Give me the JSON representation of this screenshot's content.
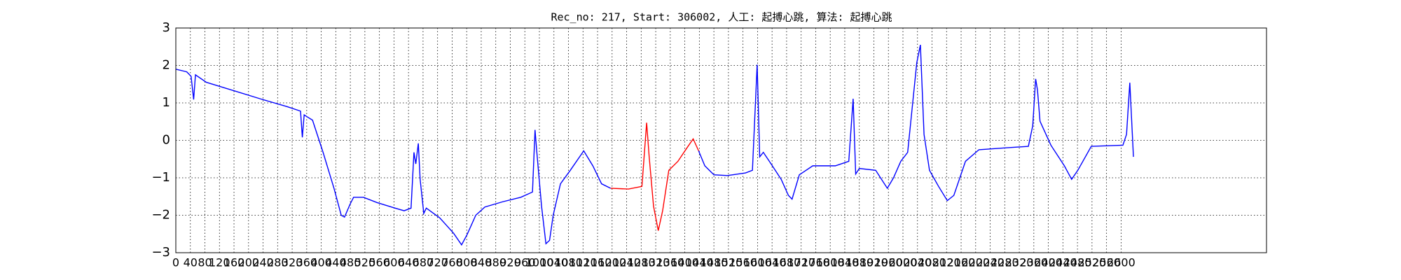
{
  "chart_data": {
    "type": "line",
    "title": "Rec_no: 217, Start: 306002, 人工: 起搏心跳, 算法: 起搏心跳",
    "xlim": [
      0,
      3000
    ],
    "ylim": [
      -3,
      3
    ],
    "yticks": [
      {
        "value": -3,
        "label": "−3"
      },
      {
        "value": -2,
        "label": "−2"
      },
      {
        "value": -1,
        "label": "−1"
      },
      0,
      1,
      2,
      3
    ],
    "xticks": [
      0,
      40,
      80,
      120,
      160,
      200,
      240,
      280,
      320,
      360,
      400,
      440,
      480,
      520,
      560,
      600,
      640,
      680,
      720,
      760,
      800,
      840,
      880,
      920,
      960,
      1000,
      1040,
      1080,
      1120,
      1160,
      1200,
      1240,
      1280,
      1320,
      1360,
      1400,
      1440,
      1480,
      1520,
      1560,
      1600,
      1640,
      1680,
      1720,
      1760,
      1800,
      1840,
      1880,
      1920,
      1960,
      2000,
      2040,
      2080,
      2120,
      2160,
      2200,
      2240,
      2280,
      2320,
      2360,
      2400,
      2440,
      2480,
      2520,
      2560,
      2600
    ],
    "grid": true,
    "series": [
      {
        "color": "#0000ff",
        "x": [
          0,
          30,
          42,
          49,
          54,
          84,
          158,
          232,
          306,
          343,
          348,
          353,
          361,
          376,
          405,
          435,
          455,
          464,
          479,
          489,
          516,
          553,
          603,
          628,
          647,
          655,
          660,
          667,
          672,
          682,
          689,
          726,
          764,
          786,
          801,
          825,
          850,
          899,
          949,
          981,
          988,
          993,
          1006,
          1018,
          1028,
          1038,
          1058,
          1085,
          1122,
          1147,
          1171,
          1196,
          null,
          1438,
          1455,
          1480,
          1517,
          1567,
          1586,
          1599,
          1606,
          1616,
          1636,
          1665,
          1685,
          1695,
          1715,
          1752,
          1814,
          1851,
          1863,
          1870,
          1880,
          1925,
          1957,
          1974,
          1994,
          2013,
          2038,
          2048,
          2058,
          2073,
          2098,
          2122,
          2140,
          2172,
          2209,
          2283,
          2345,
          2357,
          2365,
          2370,
          2377,
          2407,
          2444,
          2464,
          2481,
          2518,
          2605,
          2615,
          2624,
          2634
        ],
        "values": [
          1.9,
          1.83,
          1.71,
          1.09,
          1.75,
          1.55,
          1.33,
          1.11,
          0.9,
          0.78,
          0.08,
          0.68,
          0.63,
          0.54,
          -0.32,
          -1.28,
          -2.0,
          -2.05,
          -1.71,
          -1.52,
          -1.52,
          -1.66,
          -1.81,
          -1.88,
          -1.81,
          -0.32,
          -0.63,
          -0.08,
          -1.04,
          -1.95,
          -1.81,
          -2.07,
          -2.48,
          -2.79,
          -2.52,
          -2.0,
          -1.78,
          -1.64,
          -1.52,
          -1.38,
          0.28,
          -0.32,
          -1.76,
          -2.76,
          -2.67,
          -2.0,
          -1.16,
          -0.8,
          -0.28,
          -0.68,
          -1.16,
          -1.28,
          null,
          -0.28,
          -0.68,
          -0.92,
          -0.94,
          -0.87,
          -0.8,
          2.02,
          -0.44,
          -0.32,
          -0.61,
          -1.04,
          -1.47,
          -1.57,
          -0.92,
          -0.68,
          -0.68,
          -0.56,
          1.11,
          -0.9,
          -0.75,
          -0.8,
          -1.28,
          -1.0,
          -0.56,
          -0.32,
          2.07,
          2.55,
          0.16,
          -0.8,
          -1.23,
          -1.61,
          -1.47,
          -0.56,
          -0.25,
          -0.2,
          -0.16,
          0.39,
          1.64,
          1.35,
          0.51,
          -0.13,
          -0.68,
          -1.04,
          -0.8,
          -0.16,
          -0.13,
          0.16,
          1.54,
          -0.44
        ]
      },
      {
        "color": "#ff0000",
        "x": [
          1196,
          1245,
          1282,
          1295,
          1302,
          1314,
          1327,
          1339,
          1356,
          1381,
          1406,
          1423,
          1438
        ],
        "values": [
          -1.28,
          -1.3,
          -1.23,
          0.47,
          -0.44,
          -1.76,
          -2.41,
          -1.88,
          -0.8,
          -0.56,
          -0.2,
          0.04,
          -0.28
        ]
      }
    ]
  }
}
